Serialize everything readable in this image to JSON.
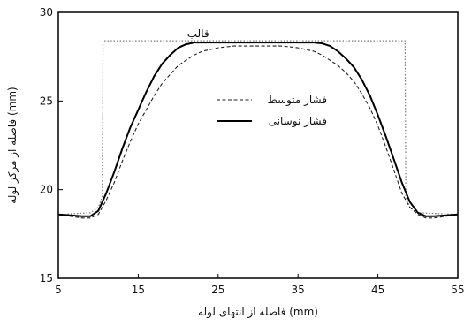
{
  "chart_data": {
    "type": "line",
    "title": "",
    "xlabel": "فاصله از انتهای لوله (mm)",
    "ylabel": "فاصله از مرکز لوله (mm)",
    "xlim": [
      5,
      55
    ],
    "ylim": [
      15,
      30
    ],
    "xticks": [
      5,
      15,
      25,
      35,
      45,
      55
    ],
    "yticks": [
      15,
      20,
      25,
      30
    ],
    "grid": false,
    "legend": "center",
    "annotations": [
      {
        "text": "قالب",
        "x": 22.5,
        "y": 28.8
      }
    ],
    "series": [
      {
        "name": "قالب",
        "style": "dotted",
        "x": [
          5,
          9,
          10,
          10.5,
          10.6,
          48.4,
          48.5,
          49,
          50,
          55
        ],
        "y": [
          18.6,
          18.7,
          19.0,
          19.6,
          28.4,
          28.4,
          19.6,
          19.0,
          18.7,
          18.6
        ]
      },
      {
        "name": "فشار متوسط",
        "style": "dashed",
        "x": [
          5,
          8,
          9,
          10,
          11,
          12,
          13,
          14,
          15,
          16,
          17,
          18,
          19,
          20,
          21,
          22,
          23,
          24,
          25,
          26,
          27,
          28,
          29,
          30,
          31,
          32,
          33,
          34,
          35,
          36,
          37,
          38,
          39,
          40,
          41,
          42,
          43,
          44,
          45,
          46,
          47,
          48,
          49,
          50,
          51,
          52,
          55
        ],
        "y": [
          18.6,
          18.4,
          18.4,
          18.6,
          19.4,
          20.4,
          21.6,
          22.7,
          23.7,
          24.5,
          25.3,
          26.0,
          26.5,
          27.0,
          27.3,
          27.6,
          27.8,
          27.9,
          28.0,
          28.05,
          28.1,
          28.1,
          28.1,
          28.1,
          28.1,
          28.1,
          28.1,
          28.05,
          28.0,
          27.9,
          27.8,
          27.6,
          27.3,
          27.0,
          26.6,
          26.1,
          25.4,
          24.6,
          23.6,
          22.4,
          21.1,
          19.8,
          19.0,
          18.6,
          18.4,
          18.4,
          18.6
        ]
      },
      {
        "name": "فشار نوسانی",
        "style": "solid",
        "x": [
          5,
          8,
          9,
          10,
          11,
          12,
          13,
          14,
          15,
          16,
          17,
          18,
          19,
          20,
          21,
          22,
          23,
          35,
          37,
          38,
          39,
          40,
          41,
          42,
          43,
          44,
          45,
          46,
          47,
          48,
          49,
          50,
          51,
          52,
          55
        ],
        "y": [
          18.6,
          18.5,
          18.5,
          18.8,
          19.8,
          21.0,
          22.3,
          23.5,
          24.5,
          25.5,
          26.4,
          27.1,
          27.6,
          28.0,
          28.2,
          28.3,
          28.3,
          28.3,
          28.3,
          28.25,
          28.1,
          27.8,
          27.4,
          26.9,
          26.2,
          25.3,
          24.2,
          23.0,
          21.7,
          20.4,
          19.3,
          18.7,
          18.5,
          18.5,
          18.6
        ]
      }
    ]
  }
}
